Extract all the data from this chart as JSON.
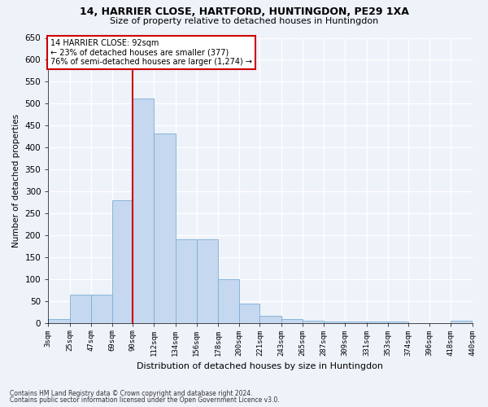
{
  "title1": "14, HARRIER CLOSE, HARTFORD, HUNTINGDON, PE29 1XA",
  "title2": "Size of property relative to detached houses in Huntingdon",
  "xlabel": "Distribution of detached houses by size in Huntingdon",
  "ylabel": "Number of detached properties",
  "footnote1": "Contains HM Land Registry data © Crown copyright and database right 2024.",
  "footnote2": "Contains public sector information licensed under the Open Government Licence v3.0.",
  "annotation_line1": "14 HARRIER CLOSE: 92sqm",
  "annotation_line2": "← 23% of detached houses are smaller (377)",
  "annotation_line3": "76% of semi-detached houses are larger (1,274) →",
  "bin_edges": [
    3,
    25,
    47,
    69,
    90,
    112,
    134,
    156,
    178,
    200,
    221,
    243,
    265,
    287,
    309,
    331,
    353,
    374,
    396,
    418,
    440
  ],
  "bin_labels": [
    "3sqm",
    "25sqm",
    "47sqm",
    "69sqm",
    "90sqm",
    "112sqm",
    "134sqm",
    "156sqm",
    "178sqm",
    "200sqm",
    "221sqm",
    "243sqm",
    "265sqm",
    "287sqm",
    "309sqm",
    "331sqm",
    "353sqm",
    "374sqm",
    "396sqm",
    "418sqm",
    "440sqm"
  ],
  "bar_values": [
    10,
    65,
    65,
    280,
    512,
    432,
    192,
    192,
    100,
    46,
    17,
    11,
    6,
    5,
    5,
    4,
    4,
    0,
    0,
    6
  ],
  "bar_color": "#c5d8ef",
  "bar_edge_color": "#7aafd4",
  "vline_x_index": 4,
  "vline_color": "#cc0000",
  "ylim": [
    0,
    650
  ],
  "yticks": [
    0,
    50,
    100,
    150,
    200,
    250,
    300,
    350,
    400,
    450,
    500,
    550,
    600,
    650
  ],
  "bg_color": "#eef2f9",
  "grid_color": "#ffffff",
  "annotation_box_color": "#ffffff",
  "annotation_box_edge": "#cc0000"
}
